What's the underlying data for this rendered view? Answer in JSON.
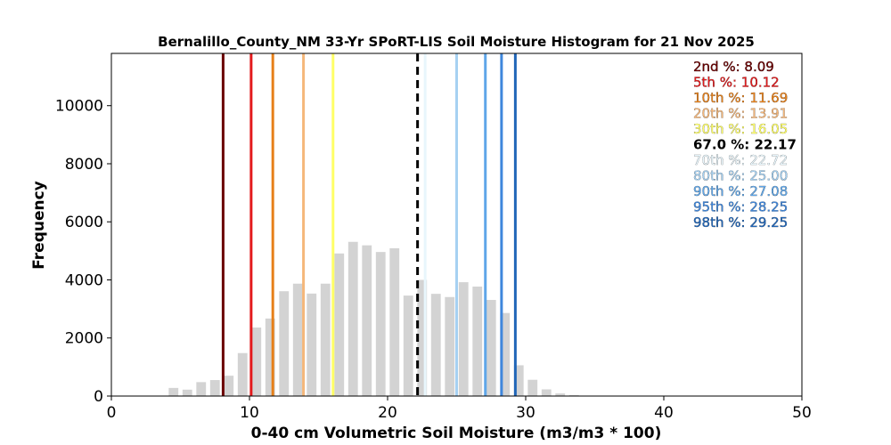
{
  "chart_data": {
    "type": "bar",
    "title": "Bernalillo_County_NM 33-Yr SPoRT-LIS Soil Moisture Histogram for 21 Nov 2025",
    "xlabel": "0-40 cm Volumetric Soil Moisture (m3/m3 * 100)",
    "ylabel": "Frequency",
    "xlim": [
      0,
      50
    ],
    "ylim": [
      0,
      11800
    ],
    "xticks": [
      0,
      10,
      20,
      30,
      40,
      50
    ],
    "yticks": [
      0,
      2000,
      4000,
      6000,
      8000,
      10000
    ],
    "bar_color": "#d3d3d3",
    "bar_width": 0.7,
    "bins": [
      {
        "x": 4.5,
        "value": 280
      },
      {
        "x": 5.5,
        "value": 220
      },
      {
        "x": 6.5,
        "value": 480
      },
      {
        "x": 7.5,
        "value": 550
      },
      {
        "x": 8.5,
        "value": 700
      },
      {
        "x": 9.5,
        "value": 1480
      },
      {
        "x": 10.5,
        "value": 2360
      },
      {
        "x": 11.5,
        "value": 2670
      },
      {
        "x": 12.5,
        "value": 3610
      },
      {
        "x": 13.5,
        "value": 3870
      },
      {
        "x": 14.5,
        "value": 3530
      },
      {
        "x": 15.5,
        "value": 3870
      },
      {
        "x": 16.5,
        "value": 4910
      },
      {
        "x": 17.5,
        "value": 5310
      },
      {
        "x": 18.5,
        "value": 5190
      },
      {
        "x": 19.5,
        "value": 4960
      },
      {
        "x": 20.5,
        "value": 5090
      },
      {
        "x": 21.5,
        "value": 3460
      },
      {
        "x": 22.5,
        "value": 4000
      },
      {
        "x": 23.5,
        "value": 3520
      },
      {
        "x": 24.5,
        "value": 3410
      },
      {
        "x": 25.5,
        "value": 3920
      },
      {
        "x": 26.5,
        "value": 3770
      },
      {
        "x": 27.5,
        "value": 3310
      },
      {
        "x": 28.5,
        "value": 2860
      },
      {
        "x": 29.5,
        "value": 1060
      },
      {
        "x": 30.5,
        "value": 560
      },
      {
        "x": 31.5,
        "value": 230
      },
      {
        "x": 32.5,
        "value": 90
      },
      {
        "x": 33.5,
        "value": 30
      }
    ],
    "percentiles": [
      {
        "label": "2nd %: 8.09",
        "value": 8.09,
        "color": "#6b0000",
        "style": "solid"
      },
      {
        "label": "5th %: 10.12",
        "value": 10.12,
        "color": "#e31a1c",
        "style": "solid"
      },
      {
        "label": "10th %: 11.69",
        "value": 11.69,
        "color": "#e6801a",
        "style": "solid"
      },
      {
        "label": "20th %: 13.91",
        "value": 13.91,
        "color": "#f5b77a",
        "style": "solid"
      },
      {
        "label": "30th %: 16.05",
        "value": 16.05,
        "color": "#ffff66",
        "style": "solid"
      },
      {
        "label": "67.0 %: 22.17",
        "value": 22.17,
        "color": "#000000",
        "style": "dashed"
      },
      {
        "label": "70th %: 22.72",
        "value": 22.72,
        "color": "#e8f6fc",
        "style": "solid"
      },
      {
        "label": "80th %: 25.00",
        "value": 25.0,
        "color": "#a6d1f2",
        "style": "solid"
      },
      {
        "label": "90th %: 27.08",
        "value": 27.08,
        "color": "#5fa6e8",
        "style": "solid"
      },
      {
        "label": "95th %: 28.25",
        "value": 28.25,
        "color": "#3f87dc",
        "style": "solid"
      },
      {
        "label": "98th %: 29.25",
        "value": 29.25,
        "color": "#2166b8",
        "style": "solid"
      }
    ],
    "legend_placement": "top-right",
    "grid": false
  }
}
